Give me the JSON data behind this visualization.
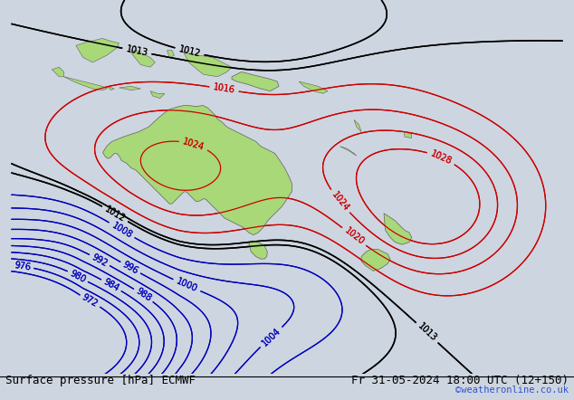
{
  "title_left": "Surface pressure [hPa] ECMWF",
  "title_right": "Fr 31-05-2024 18:00 UTC (12+150)",
  "watermark": "©weatheronline.co.uk",
  "bg_color": "#cdd5e0",
  "land_color": "#a8d878",
  "border_color": "#606060",
  "isobar_blue_color": "#0000bb",
  "isobar_red_color": "#cc0000",
  "isobar_black_color": "#000000",
  "label_fontsize": 7,
  "title_fontsize": 9,
  "watermark_color": "#3355cc",
  "lon_min": 95,
  "lon_max": 210,
  "lat_min": -68,
  "lat_max": 10
}
